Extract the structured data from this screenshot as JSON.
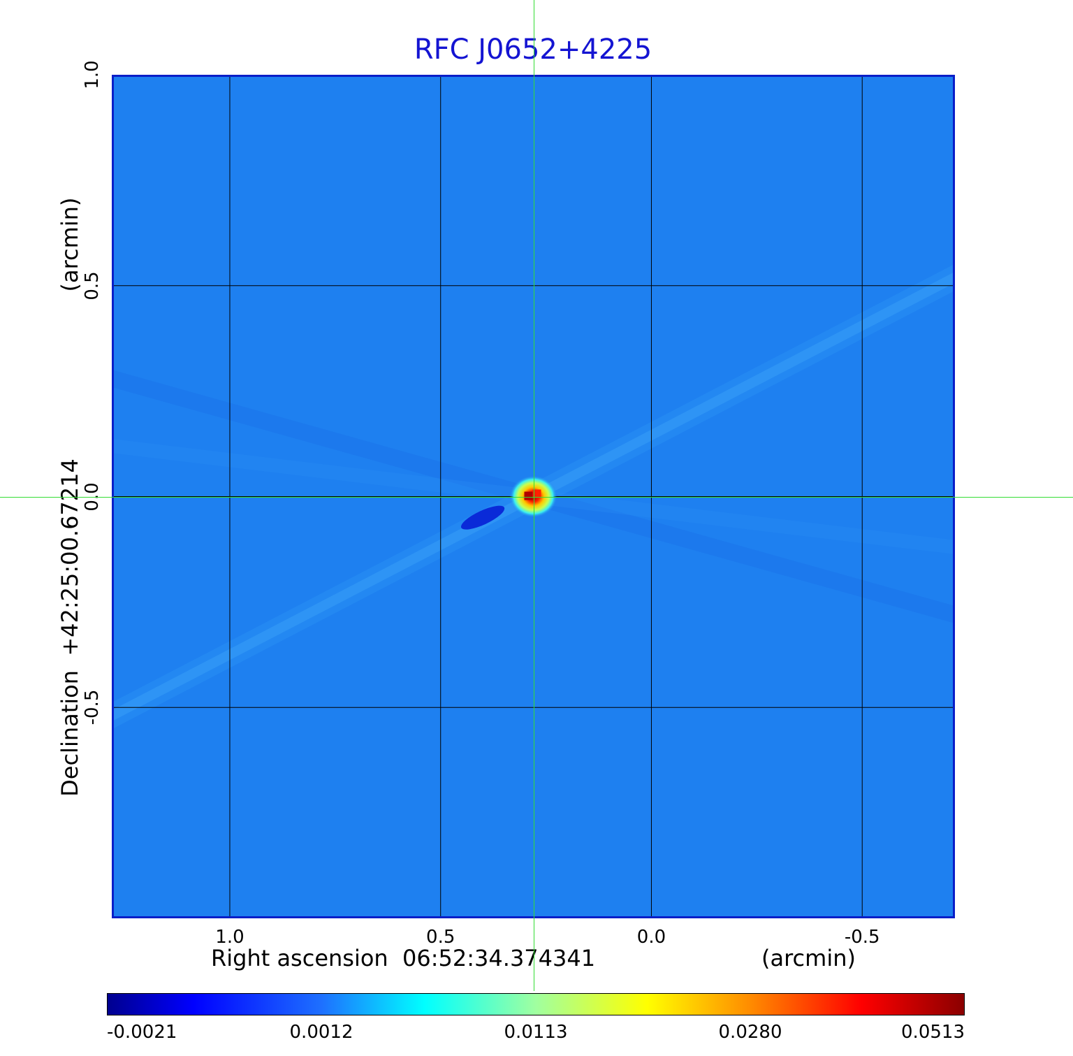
{
  "chart_data": {
    "type": "heatmap",
    "title": "RFC J0652+4225",
    "xlabel": "Right ascension  06:52:34.374341",
    "xlabel_unit": "(arcmin)",
    "ylabel": "Declination  +42:25:00.67214",
    "ylabel_unit": "(arcmin)",
    "xlim": [
      1.28,
      -0.72
    ],
    "ylim": [
      -1.0,
      1.0
    ],
    "x_ticks": [
      "1.0",
      "0.5",
      "0.0",
      "-0.5"
    ],
    "x_tick_values": [
      1.0,
      0.5,
      0.0,
      -0.5
    ],
    "y_ticks": [
      "1.0",
      "0.5",
      "0.0",
      "-0.5"
    ],
    "y_tick_values": [
      1.0,
      0.5,
      0.0,
      -0.5
    ],
    "grid": true,
    "colormap": "jet",
    "colorbar": {
      "placement": "bottom",
      "ticks": [
        "-0.0021",
        "0.0012",
        "0.0113",
        "0.0280",
        "0.0513"
      ],
      "min": -0.0021,
      "max": 0.0513
    },
    "source_peak": {
      "x": 0.28,
      "y": 0.0,
      "value": 0.0513
    },
    "negative_dip": {
      "x": 0.4,
      "y": -0.05,
      "value": -0.0021
    },
    "background_level": 0.0,
    "crosshair": {
      "x": 0.28,
      "y": 0.0
    }
  },
  "colors": {
    "title": "#1414d2",
    "frame": "#0a1ec8",
    "grid": "#000000",
    "crosshair": "#33dd33",
    "background_map": "#1e80f0"
  }
}
